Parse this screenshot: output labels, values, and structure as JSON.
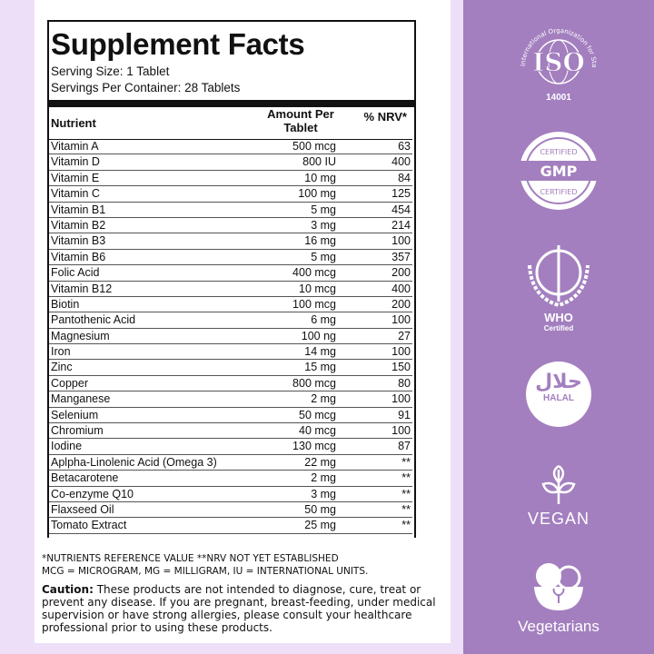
{
  "title": "Supplement Facts",
  "serving_size": "Serving Size: 1 Tablet",
  "servings_per_container": "Servings Per Container: 28 Tablets",
  "headers": {
    "nutrient": "Nutrient",
    "amount": "Amount Per Tablet",
    "nrv": "% NRV*"
  },
  "rows": [
    [
      "Vitamin A",
      "500 mcg",
      "63"
    ],
    [
      "Vitamin D",
      "800 IU",
      "400"
    ],
    [
      "Vitamin E",
      "10 mg",
      "84"
    ],
    [
      "Vitamin C",
      "100 mg",
      "125"
    ],
    [
      "Vitamin B1",
      "5 mg",
      "454"
    ],
    [
      "Vitamin B2",
      "3 mg",
      "214"
    ],
    [
      "Vitamin B3",
      "16 mg",
      "100"
    ],
    [
      "Vitamin B6",
      "5 mg",
      "357"
    ],
    [
      "Folic Acid",
      "400 mcg",
      "200"
    ],
    [
      "Vitamin B12",
      "10 mcg",
      "400"
    ],
    [
      "Biotin",
      "100 mcg",
      "200"
    ],
    [
      "Pantothenic Acid",
      "6 mg",
      "100"
    ],
    [
      "Magnesium",
      "100 ng",
      "27"
    ],
    [
      "Iron",
      "14 mg",
      "100"
    ],
    [
      "Zinc",
      "15 mg",
      "150"
    ],
    [
      "Copper",
      "800 mcg",
      "80"
    ],
    [
      "Manganese",
      "2 mg",
      "100"
    ],
    [
      "Selenium",
      "50 mcg",
      "91"
    ],
    [
      "Chromium",
      "40 mcg",
      "100"
    ],
    [
      "Iodine",
      "130 mcg",
      "87"
    ],
    [
      "Aplpha-Linolenic Acid (Omega 3)",
      "22 mg",
      "**"
    ],
    [
      "Betacarotene",
      "2 mg",
      "**"
    ],
    [
      "Co-enzyme Q10",
      "3 mg",
      "**"
    ],
    [
      "Flaxseed Oil",
      "50 mg",
      "**"
    ],
    [
      "Tomato Extract",
      "25 mg",
      "**"
    ]
  ],
  "footnote1": "*NUTRIENTS REFERENCE VALUE **NRV NOT YET ESTABLISHED",
  "footnote2": "MCG = MICROGRAM, MG = MILLIGRAM, IU = INTERNATIONAL UNITS.",
  "caution_label": "Caution:",
  "caution_text": " These products are not intended to diagnose, cure, treat or prevent any disease. If you are pregnant, breast-feeding, under medical supervision or have strong allergies, please consult your healthcare professional prior to using these products.",
  "badges": {
    "iso": {
      "ring": "International Organization for Standardization",
      "logo": "ISO",
      "number": "14001"
    },
    "gmp": {
      "top": "CERTIFIED",
      "logo": "GMP",
      "bottom": "CERTIFIED"
    },
    "who": {
      "logo": "WHO",
      "sub": "Certified"
    },
    "halal": {
      "arabic": "حلال",
      "label": "HALAL"
    },
    "vegan": {
      "label": "VEGAN"
    },
    "vegetarian": {
      "label": "Vegetarians"
    }
  },
  "colors": {
    "panel": "#a37fbf",
    "background": "#ecdff7"
  }
}
